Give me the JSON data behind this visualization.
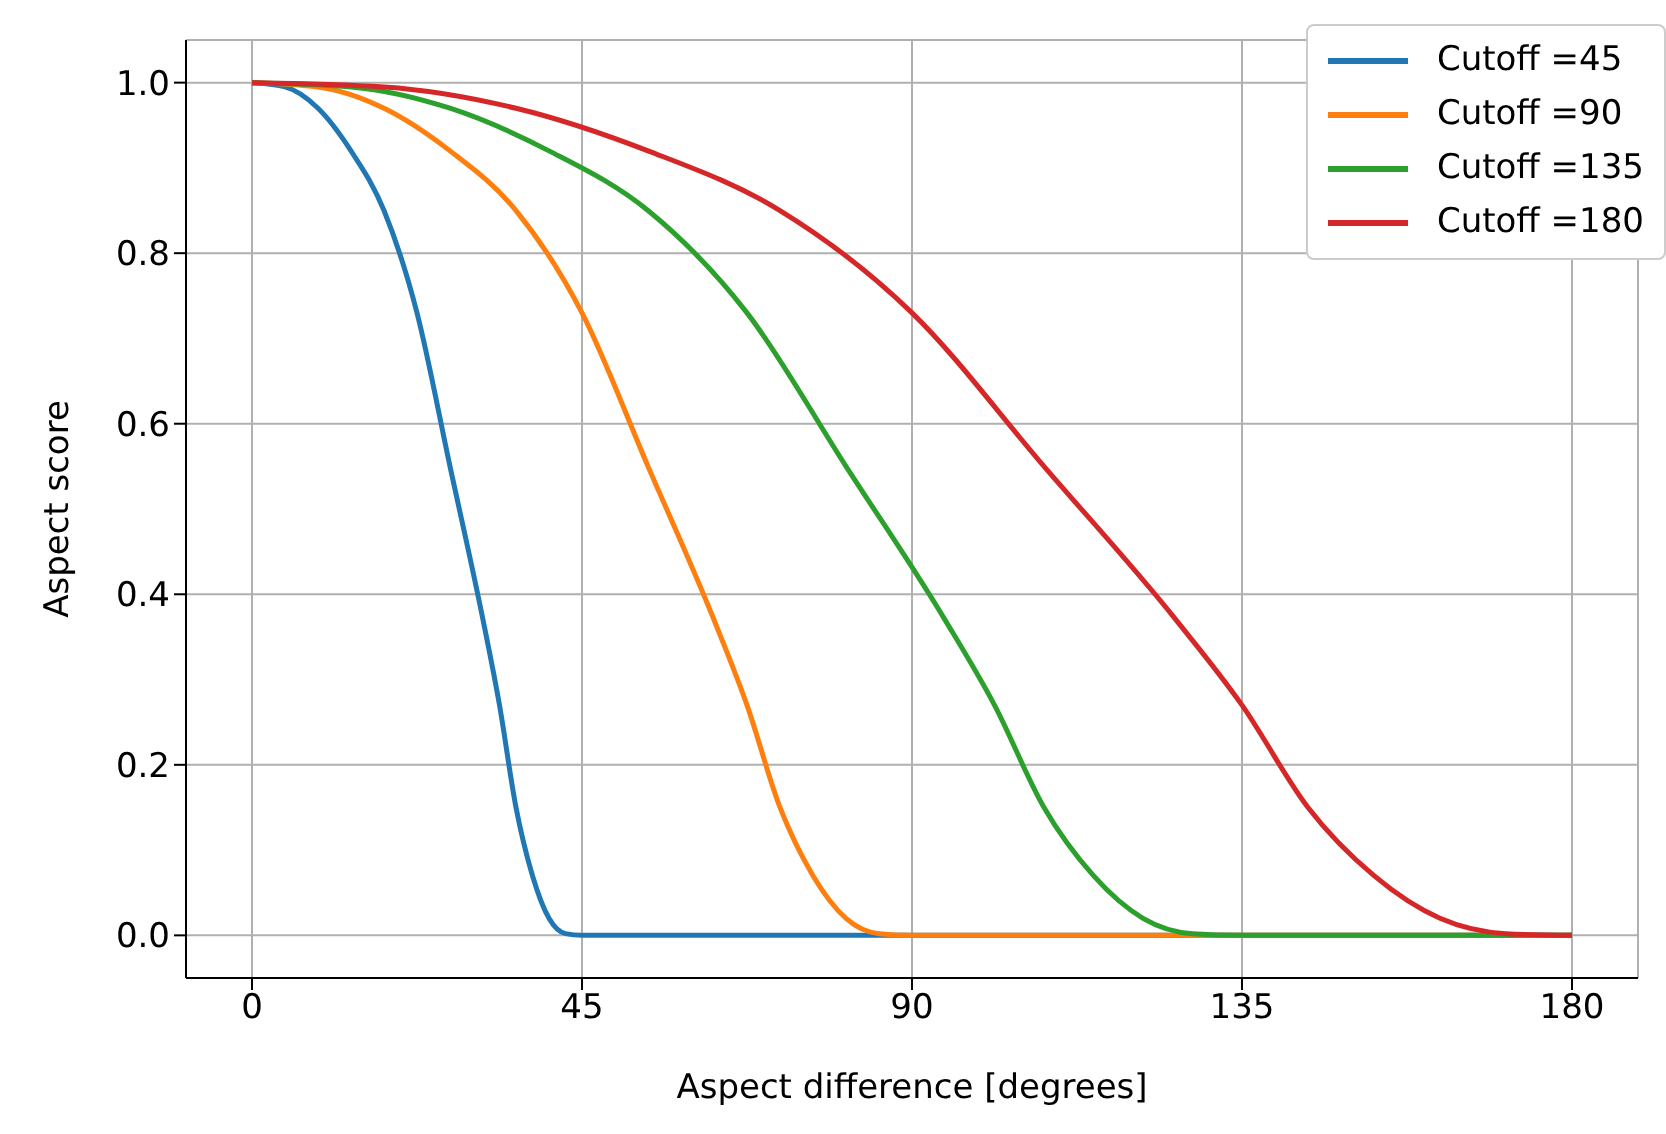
{
  "chart_data": {
    "type": "line",
    "xlabel": "Aspect difference [degrees]",
    "ylabel": "Aspect score",
    "xlim": [
      -9,
      189
    ],
    "xticks": [
      0,
      45,
      90,
      135,
      180
    ],
    "ylim": [
      -0.05,
      1.05
    ],
    "yticks": [
      {
        "value": 0,
        "label": "0.0"
      },
      {
        "value": 0.2,
        "label": "0.2"
      },
      {
        "value": 0.4,
        "label": "0.4"
      },
      {
        "value": 0.6,
        "label": "0.6"
      },
      {
        "value": 0.8,
        "label": "0.8"
      },
      {
        "value": 1,
        "label": "1.0"
      }
    ],
    "grid": true,
    "legend": "top right",
    "marker": "none",
    "line_style": "solid",
    "series": [
      {
        "name": "Cutoff =45",
        "color": "#1f77b4",
        "x": [
          0,
          4.5,
          9,
          13.5,
          18,
          22.5,
          27,
          31.5,
          33.75,
          36,
          38.25,
          40.5,
          42.75,
          45,
          180
        ],
        "values": [
          1,
          0.995,
          0.97,
          0.92,
          0.85,
          0.73,
          0.55,
          0.37,
          0.27,
          0.15,
          0.07,
          0.02,
          0.002,
          0,
          0
        ]
      },
      {
        "name": "Cutoff =90",
        "color": "#ff7f0e",
        "x": [
          0,
          9,
          18,
          27,
          36,
          45,
          54,
          63,
          67.5,
          72,
          76.5,
          81,
          85.5,
          90,
          180
        ],
        "values": [
          1,
          0.995,
          0.97,
          0.92,
          0.85,
          0.73,
          0.55,
          0.37,
          0.27,
          0.15,
          0.07,
          0.02,
          0.002,
          0,
          0
        ]
      },
      {
        "name": "Cutoff =135",
        "color": "#2ca02c",
        "x": [
          0,
          13.5,
          27,
          40.5,
          54,
          67.5,
          81,
          94.5,
          101.25,
          108,
          114.75,
          121.5,
          128.25,
          135,
          180
        ],
        "values": [
          1,
          0.995,
          0.97,
          0.92,
          0.85,
          0.73,
          0.55,
          0.37,
          0.27,
          0.15,
          0.07,
          0.02,
          0.002,
          0,
          0
        ]
      },
      {
        "name": "Cutoff =180",
        "color": "#d62728",
        "x": [
          0,
          18,
          36,
          54,
          72,
          90,
          108,
          126,
          135,
          144,
          153,
          162,
          171,
          180
        ],
        "values": [
          1,
          0.995,
          0.97,
          0.92,
          0.85,
          0.73,
          0.55,
          0.37,
          0.27,
          0.15,
          0.07,
          0.02,
          0.002,
          0
        ]
      }
    ]
  }
}
